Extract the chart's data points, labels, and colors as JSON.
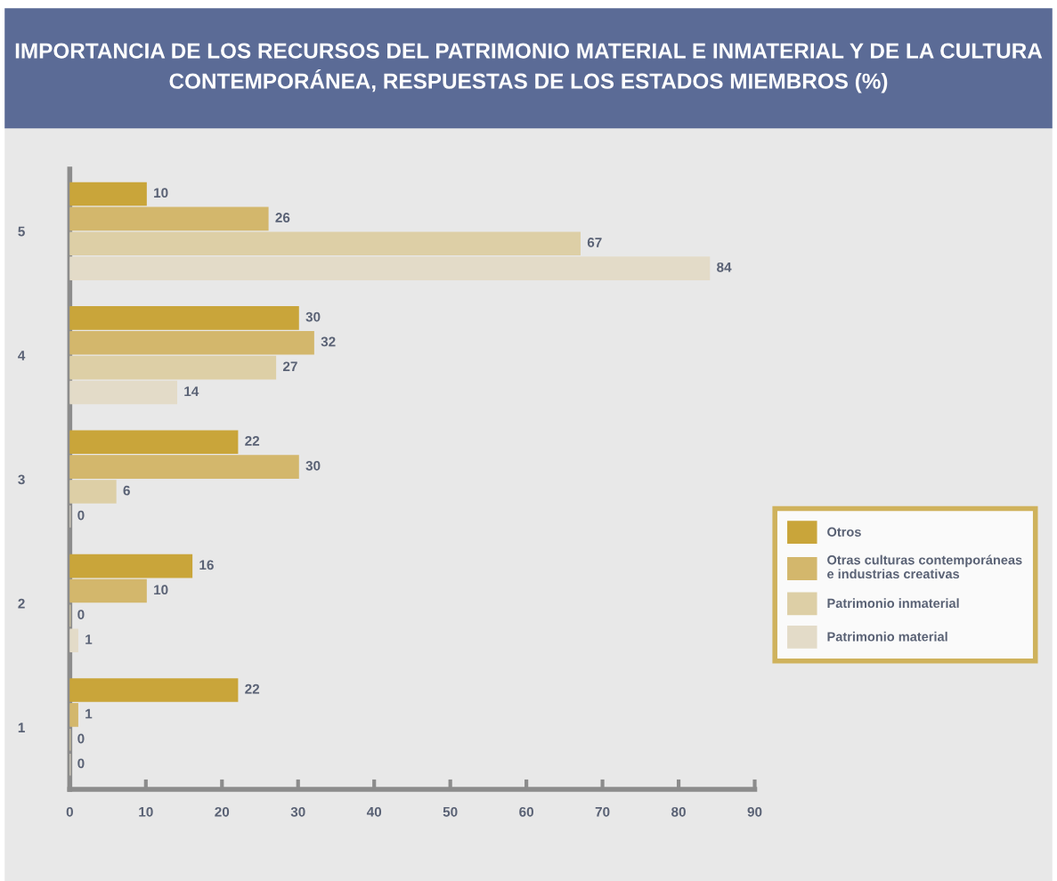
{
  "chart_data": {
    "type": "bar",
    "orientation": "horizontal",
    "title": "IMPORTANCIA DE LOS RECURSOS DEL PATRIMONIO MATERIAL E INMATERIAL Y DE LA CULTURA CONTEMPORÁNEA, RESPUESTAS DE LOS ESTADOS MIEMBROS (%)",
    "categories": [
      "5",
      "4",
      "3",
      "2",
      "1"
    ],
    "series": [
      {
        "name": "Otros",
        "color": "#c9a53a",
        "values": [
          10,
          30,
          22,
          16,
          22
        ]
      },
      {
        "name": "Otras culturas contemporáneas\ne industrias creativas",
        "color": "#d3b76c",
        "values": [
          26,
          32,
          30,
          10,
          1
        ]
      },
      {
        "name": "Patrimonio inmaterial",
        "color": "#ddcfa6",
        "values": [
          67,
          27,
          6,
          0,
          0
        ]
      },
      {
        "name": "Patrimonio material",
        "color": "#e3dbc8",
        "values": [
          84,
          14,
          0,
          1,
          0
        ]
      }
    ],
    "xlim": [
      0,
      90
    ],
    "xticks": [
      0,
      10,
      20,
      30,
      40,
      50,
      60,
      70,
      80,
      90
    ],
    "data_labels": true,
    "legend": "right",
    "grid": false
  }
}
